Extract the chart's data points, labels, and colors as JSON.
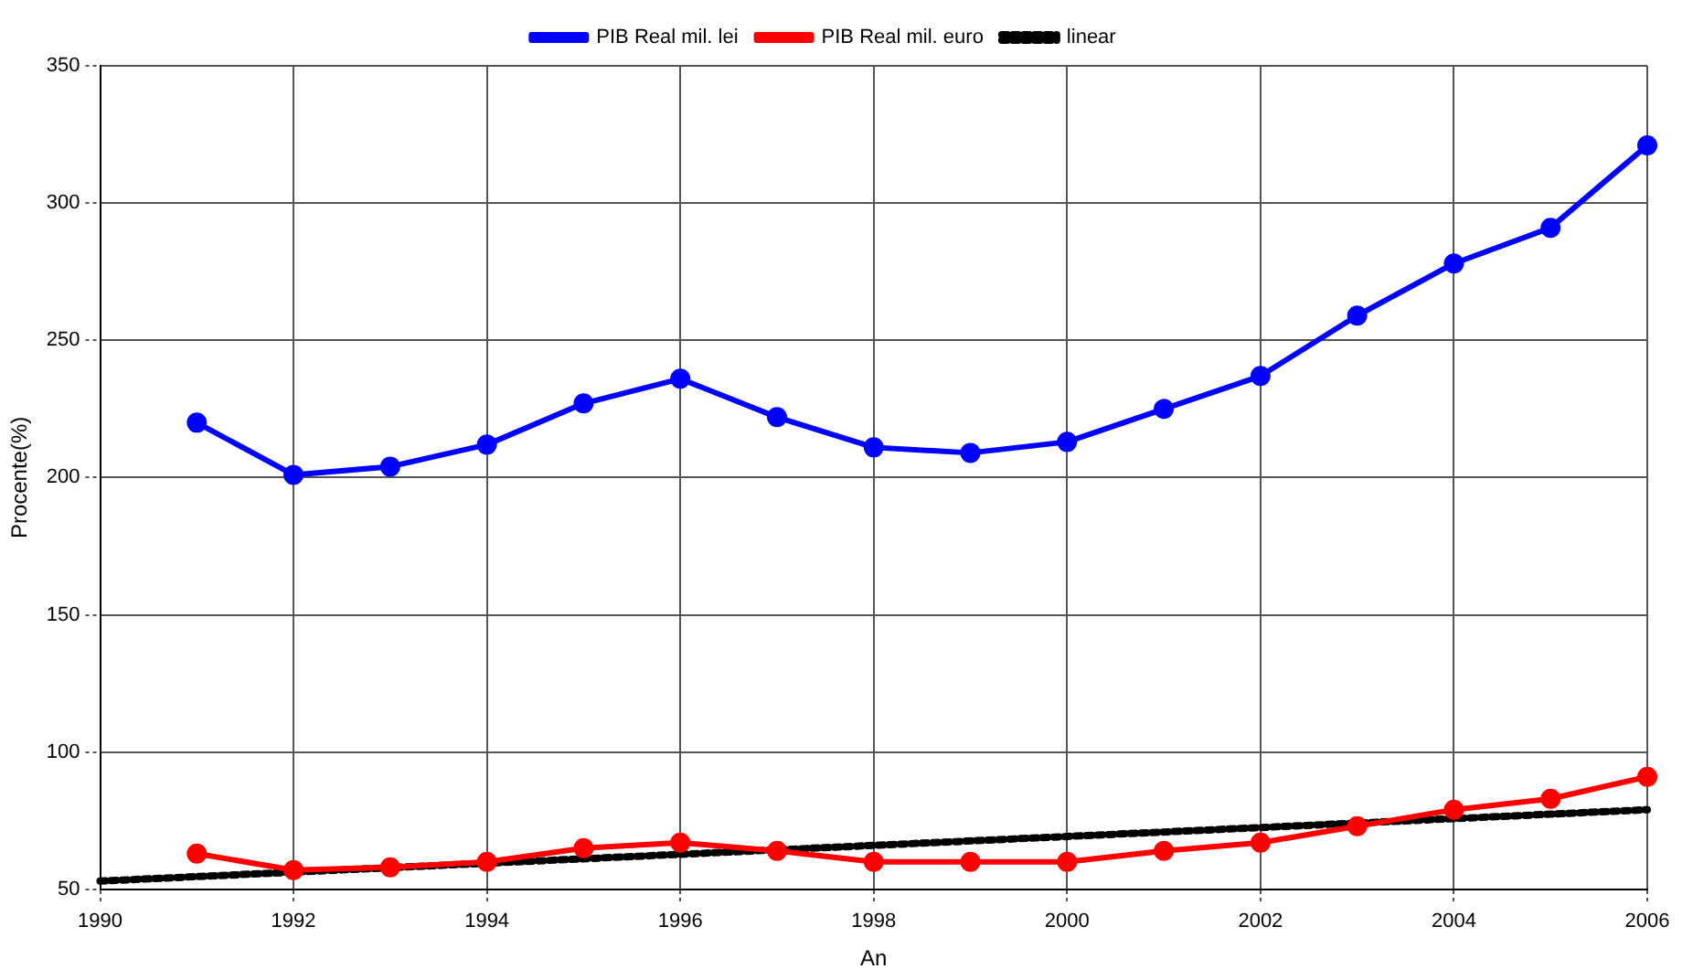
{
  "chart_data": {
    "type": "line",
    "xlabel": "An",
    "ylabel": "Procente(%)",
    "x": [
      1991,
      1992,
      1993,
      1994,
      1995,
      1996,
      1997,
      1998,
      1999,
      2000,
      2001,
      2002,
      2003,
      2004,
      2005,
      2006
    ],
    "series": [
      {
        "name": "PIB Real mil. lei",
        "color": "#0000ff",
        "marker": "circle",
        "line_style": "solid",
        "values": [
          220,
          201,
          204,
          212,
          227,
          236,
          222,
          211,
          209,
          213,
          225,
          237,
          259,
          278,
          291,
          321
        ]
      },
      {
        "name": "PIB Real mil. euro",
        "color": "#ff0000",
        "marker": "circle",
        "line_style": "solid",
        "values": [
          63,
          57,
          58,
          60,
          65,
          67,
          64,
          60,
          60,
          60,
          64,
          67,
          73,
          79,
          83,
          91
        ]
      },
      {
        "name": "linear",
        "color": "#000000",
        "marker": "none",
        "line_style": "dotted",
        "x": [
          1990,
          2006
        ],
        "values": [
          53,
          79
        ]
      }
    ],
    "xlim": [
      1990,
      2006
    ],
    "xticks": [
      1990,
      1992,
      1994,
      1996,
      1998,
      2000,
      2002,
      2004,
      2006
    ],
    "ylim": [
      50,
      350
    ],
    "yticks": [
      50,
      100,
      150,
      200,
      250,
      300,
      350
    ],
    "grid": true,
    "legend": "top"
  }
}
